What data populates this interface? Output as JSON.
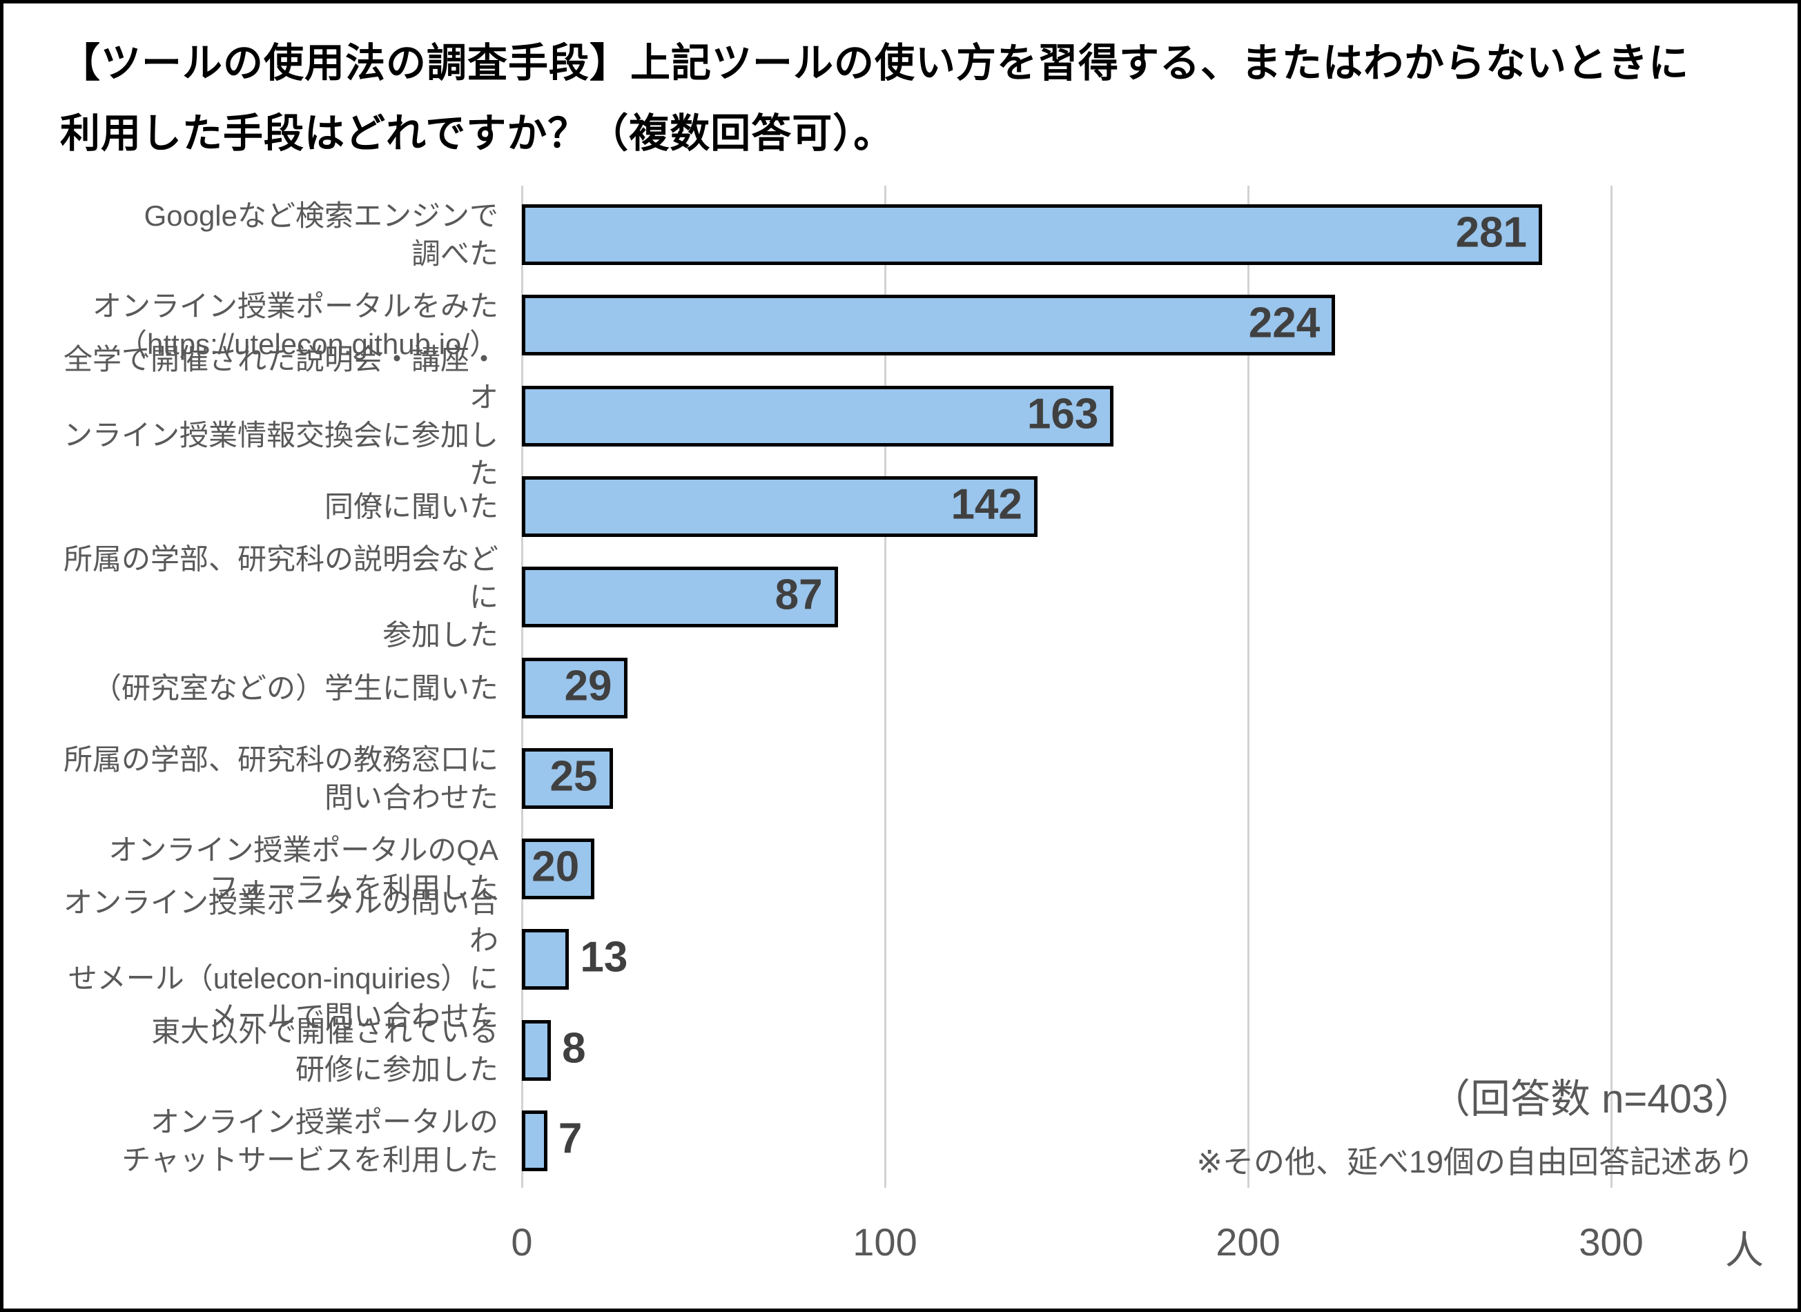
{
  "title": {
    "text": "【ツールの使用法の調査手段】上記ツールの使い方を習得する、またはわからないときに利用した手段はどれですか？（複数回答可）。",
    "display": "【ツールの使用法の調査手段】上記ツールの使い方を習得する、またはわからないときに\n利用した手段はどれですか？（複数回答可）。"
  },
  "chart_data": {
    "type": "bar",
    "orientation": "horizontal",
    "title": "【ツールの使用法の調査手段】上記ツールの使い方を習得する、またはわからないときに利用した手段はどれですか？（複数回答可）。",
    "categories": [
      "Googleなど検索エンジンで調べた",
      "オンライン授業ポータルをみた（https://utelecon.github.io/）",
      "全学で開催された説明会・講座・オンライン授業情報交換会に参加した",
      "同僚に聞いた",
      "所属の学部、研究科の説明会などに参加した",
      "（研究室などの）学生に聞いた",
      "所属の学部、研究科の教務窓口に問い合わせた",
      "オンライン授業ポータルのQAフォーラムを利用した",
      "オンライン授業ポータルの問い合わせメール（utelecon-inquiries）にメールで問い合わせた",
      "東大以外で開催されている研修に参加した",
      "オンライン授業ポータルのチャットサービスを利用した"
    ],
    "category_display": [
      "Googleなど検索エンジンで\n調べた",
      "オンライン授業ポータルをみた\n（https://utelecon.github.io/）",
      "全学で開催された説明会・講座・オ\nンライン授業情報交換会に参加した",
      "同僚に聞いた",
      "所属の学部、研究科の説明会などに\n参加した",
      "（研究室などの）学生に聞いた",
      "所属の学部、研究科の教務窓口に\n問い合わせた",
      "オンライン授業ポータルのQA\nフォーラムを利用した",
      "オンライン授業ポータルの問い合わ\nせメール（utelecon-inquiries）に\nメールで問い合わせた",
      "東大以外で開催されている\n研修に参加した",
      "オンライン授業ポータルの\nチャットサービスを利用した"
    ],
    "values": [
      281,
      224,
      163,
      142,
      87,
      29,
      25,
      20,
      13,
      8,
      7
    ],
    "x_ticks": [
      "0",
      "100",
      "200",
      "300"
    ],
    "x_tick_values": [
      0,
      100,
      200,
      300
    ],
    "xlim": [
      0,
      300
    ],
    "x_unit": "人",
    "grid": "vertical-gridlines-on",
    "legend": "none",
    "colors": {
      "bar_fill": "#9AC5EC",
      "bar_border": "#000000",
      "value_label": "#404040",
      "category_label": "#595959",
      "axis_label": "#595959",
      "gridline": "#D2D2D2",
      "frame_border": "#000000"
    },
    "annotations": {
      "respondents": "（回答数 n=403）",
      "note": "※その他、延べ19個の自由回答記述あり"
    }
  }
}
